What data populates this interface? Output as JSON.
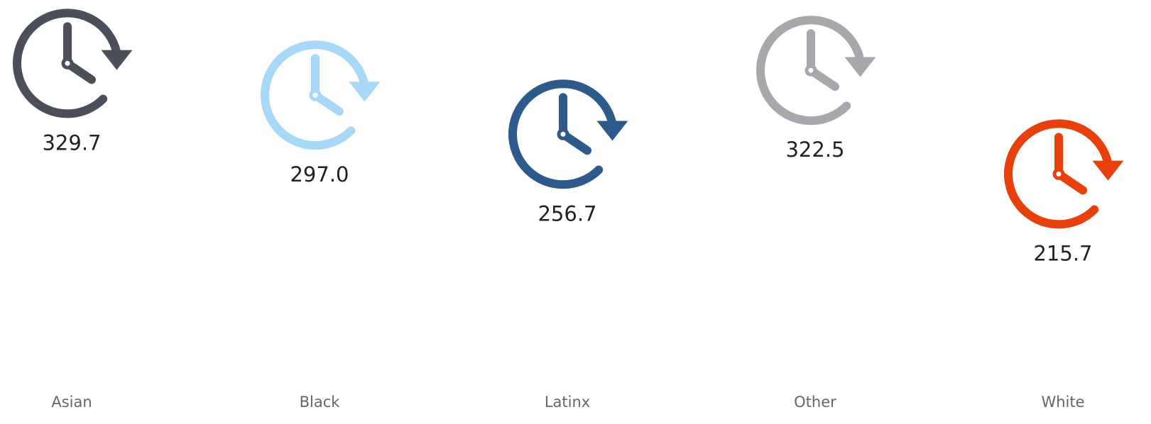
{
  "chart_data": {
    "type": "pictogram",
    "categories": [
      "Asian",
      "Black",
      "Latinx",
      "Other",
      "White"
    ],
    "values": [
      329.7,
      297.0,
      256.7,
      322.5,
      215.7
    ],
    "value_labels": [
      "329.7",
      "297.0",
      "256.7",
      "322.5",
      "215.7"
    ],
    "colors": [
      "#4a4f5a",
      "#a8d8f8",
      "#2c5a8a",
      "#a6a8ab",
      "#e8400c"
    ],
    "ylim": [
      15,
      395
    ]
  }
}
